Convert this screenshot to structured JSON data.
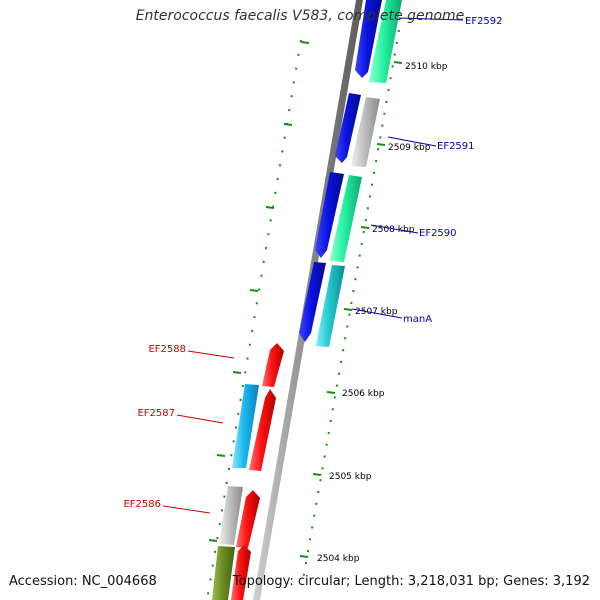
{
  "title": "Enterococcus faecalis V583, complete genome",
  "accession_text": "Accession: NC_004668",
  "topology_text": "Topology: circular; Length: 3,218,031 bp; Genes: 3,192",
  "ticks": [
    "2510 kbp",
    "2509 kbp",
    "2508 kbp",
    "2507 kbp",
    "2506 kbp",
    "2505 kbp",
    "2504 kbp"
  ],
  "genes_right": [
    "EF2592",
    "EF2591",
    "EF2590",
    "manA"
  ],
  "genes_left": [
    "EF2588",
    "EF2587",
    "EF2586"
  ],
  "colors": {
    "blue": "#0a12e0",
    "green": "#23f0a0",
    "gray": "#b8b8b8",
    "cyan": "#22c8d0",
    "red": "#ff1212",
    "sky": "#1ab8f0",
    "olive": "#6b8e23",
    "tick": "#1a8a1a",
    "right_label": "#0000aa",
    "left_label": "#cc0000"
  }
}
